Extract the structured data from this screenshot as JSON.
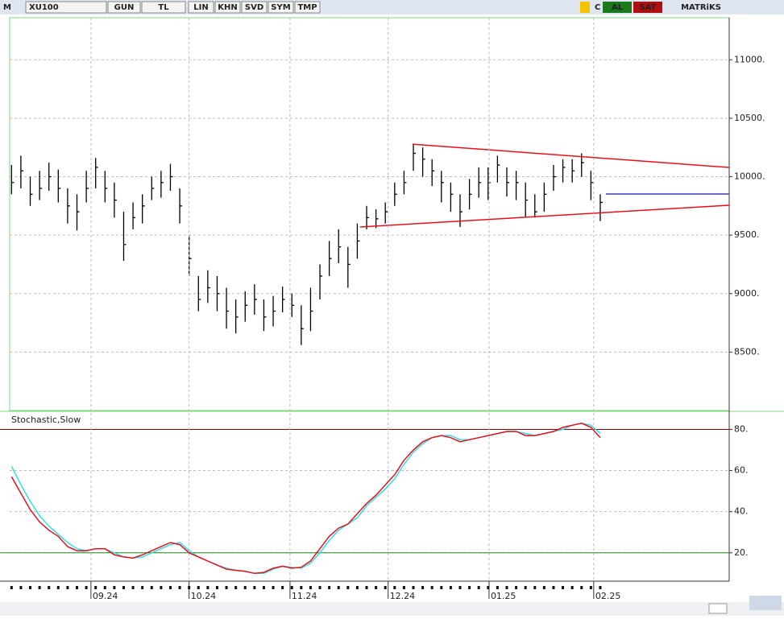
{
  "toolbar": {
    "logo": "M",
    "symbol": "XU100",
    "period": "GUN",
    "currency": "TL",
    "buttons": [
      "LIN",
      "KHN",
      "SVD",
      "SYM",
      "TMP"
    ],
    "c": "C",
    "buy": "AL",
    "sell": "SAT",
    "brand": "MATRiKS"
  },
  "chart_data": [
    {
      "type": "ohlc",
      "name": "XU100",
      "x": [
        0,
        1,
        2,
        3,
        4,
        5,
        6,
        7,
        8,
        9,
        10,
        11,
        12,
        13,
        14,
        15,
        16,
        17,
        18,
        19,
        20,
        21,
        22,
        23,
        24,
        25,
        26,
        27,
        28,
        29,
        30,
        31,
        32,
        33,
        34,
        35,
        36,
        37,
        38,
        39,
        40,
        41,
        42,
        43,
        44,
        45,
        46,
        47,
        48,
        49,
        50,
        51,
        52,
        53,
        54,
        55,
        56,
        57,
        58,
        59,
        60,
        61,
        62,
        63
      ],
      "high": [
        10100,
        10180,
        10000,
        10050,
        10120,
        10060,
        9900,
        9850,
        10050,
        10160,
        10050,
        9950,
        9700,
        9780,
        9850,
        10000,
        10050,
        10110,
        9900,
        9500,
        9150,
        9200,
        9150,
        9050,
        8950,
        9020,
        9080,
        8950,
        8980,
        9060,
        9000,
        8900,
        9050,
        9250,
        9450,
        9550,
        9400,
        9600,
        9750,
        9720,
        9780,
        9950,
        10050,
        10280,
        10250,
        10150,
        10050,
        9950,
        9850,
        9980,
        10080,
        10080,
        10180,
        10080,
        10050,
        9950,
        9850,
        9950,
        10100,
        10150,
        10150,
        10200,
        10050,
        9850
      ],
      "low": [
        9850,
        9900,
        9750,
        9800,
        9880,
        9780,
        9600,
        9540,
        9780,
        9900,
        9780,
        9650,
        9280,
        9550,
        9600,
        9800,
        9820,
        9880,
        9600,
        9150,
        8850,
        8920,
        8850,
        8700,
        8660,
        8760,
        8820,
        8680,
        8720,
        8840,
        8800,
        8560,
        8680,
        8950,
        9150,
        9260,
        9050,
        9300,
        9550,
        9560,
        9600,
        9750,
        9850,
        10050,
        10000,
        9920,
        9780,
        9700,
        9570,
        9720,
        9820,
        9800,
        9950,
        9830,
        9800,
        9650,
        9650,
        9700,
        9880,
        9950,
        9950,
        10000,
        9800,
        9620
      ],
      "close": [
        9950,
        10050,
        9850,
        9900,
        10000,
        9900,
        9750,
        9700,
        9900,
        10080,
        9900,
        9800,
        9420,
        9650,
        9750,
        9900,
        9950,
        10000,
        9750,
        9300,
        8950,
        9050,
        9000,
        8850,
        8800,
        8900,
        8950,
        8800,
        8850,
        8950,
        8900,
        8700,
        8850,
        9150,
        9300,
        9400,
        9250,
        9450,
        9650,
        9640,
        9700,
        9850,
        9950,
        10200,
        10150,
        10050,
        9950,
        9850,
        9700,
        9850,
        9950,
        9950,
        10100,
        9950,
        9950,
        9800,
        9700,
        9850,
        10000,
        10080,
        10050,
        10120,
        9950,
        9780
      ],
      "color": "#000000",
      "xlim": [
        -0.2,
        76.8
      ],
      "ylim": [
        8000,
        11360
      ],
      "yticks": [
        {
          "value": 8500,
          "label": "8500."
        },
        {
          "value": 9000,
          "label": "9000."
        },
        {
          "value": 9500,
          "label": "9500."
        },
        {
          "value": 10000,
          "label": "10000."
        },
        {
          "value": 10500,
          "label": "10500."
        },
        {
          "value": 11000,
          "label": "11000."
        }
      ],
      "grid": true,
      "lines": [
        {
          "color": "#e8101a",
          "x": [
            42.9,
            76.8
          ],
          "y": [
            10278,
            10079
          ]
        },
        {
          "color": "#e8101a",
          "x": [
            37.3,
            76.8
          ],
          "y": [
            9570,
            9756
          ]
        },
        {
          "color": "#3a3ab8",
          "x": [
            63.6,
            76.8
          ],
          "y": [
            9852,
            9852
          ]
        }
      ]
    },
    {
      "type": "line",
      "title": "Stochastic,Slow",
      "x": [
        0,
        1,
        2,
        3,
        4,
        5,
        6,
        7,
        8,
        9,
        10,
        11,
        12,
        13,
        14,
        15,
        16,
        17,
        18,
        19,
        20,
        21,
        22,
        23,
        24,
        25,
        26,
        27,
        28,
        29,
        30,
        31,
        32,
        33,
        34,
        35,
        36,
        37,
        38,
        39,
        40,
        41,
        42,
        43,
        44,
        45,
        46,
        47,
        48,
        49,
        50,
        51,
        52,
        53,
        54,
        55,
        56,
        57,
        58,
        59,
        60,
        61,
        62,
        63
      ],
      "series": [
        {
          "color": "#2fe0e8",
          "values": [
            62,
            53,
            45,
            38,
            33,
            29,
            25,
            22,
            21,
            22,
            22,
            20,
            18,
            17.5,
            18,
            20,
            22,
            24,
            25,
            21,
            18,
            16,
            14,
            12.5,
            11.5,
            11,
            10,
            10,
            12,
            13.5,
            13,
            12.5,
            15,
            20,
            26,
            31,
            34,
            37,
            43,
            47,
            51,
            56,
            63,
            69,
            73,
            76,
            77,
            77,
            75,
            75,
            76,
            77,
            78,
            79,
            79,
            78,
            77,
            78,
            79,
            80,
            82,
            83,
            82,
            78
          ]
        },
        {
          "color": "#e8101a",
          "values": [
            57,
            49,
            41,
            35,
            31,
            28,
            23,
            21,
            21,
            22,
            22,
            19,
            18,
            17.5,
            19,
            21,
            23,
            25,
            24,
            20,
            18,
            16,
            14,
            12,
            11.5,
            11,
            10,
            10.5,
            12.5,
            13.5,
            12.5,
            13,
            16,
            22,
            28,
            32,
            34,
            39,
            44,
            48,
            53,
            58,
            65,
            70,
            74,
            76,
            77,
            76,
            74,
            75,
            76,
            77,
            78,
            79,
            79,
            77,
            77,
            78,
            79,
            81,
            82,
            83,
            81,
            76
          ]
        }
      ],
      "hlines": [
        {
          "value": 80,
          "color": "#8b0000"
        },
        {
          "value": 20,
          "color": "#1e8c1e"
        }
      ],
      "xlim": [
        -0.2,
        76.8
      ],
      "ylim": [
        7,
        88
      ],
      "yticks": [
        {
          "value": 20,
          "label": "20."
        },
        {
          "value": 40,
          "label": "40."
        },
        {
          "value": 60,
          "label": "60."
        },
        {
          "value": 80,
          "label": "80."
        }
      ],
      "xticks": [
        {
          "value": 8.5,
          "label": "09.24"
        },
        {
          "value": 19.0,
          "label": "10.24"
        },
        {
          "value": 29.8,
          "label": "11.24"
        },
        {
          "value": 40.3,
          "label": "12.24"
        },
        {
          "value": 51.1,
          "label": "01.25"
        },
        {
          "value": 62.3,
          "label": "02.25"
        }
      ],
      "grid": true
    }
  ]
}
